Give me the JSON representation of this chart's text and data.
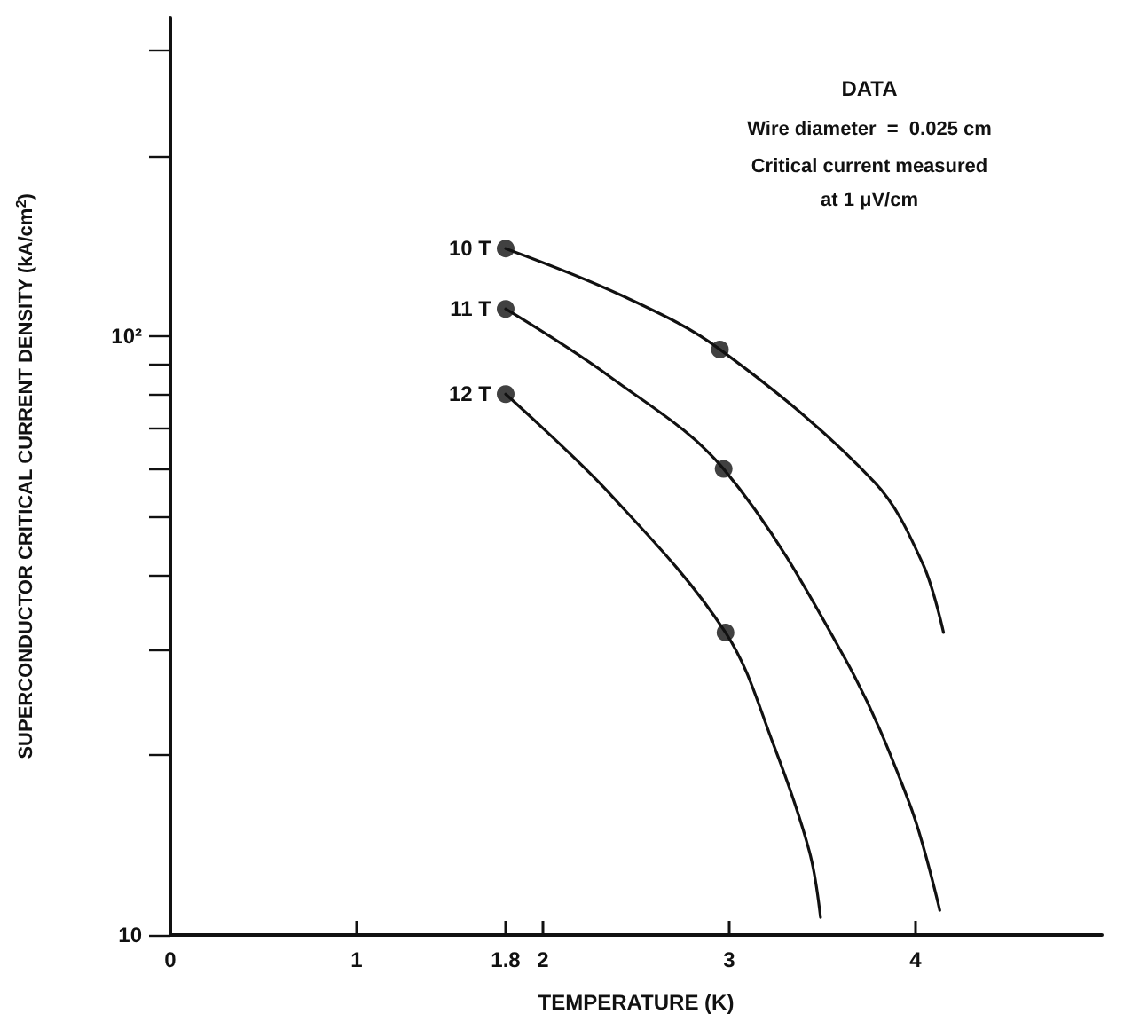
{
  "chart_data": {
    "type": "line",
    "xlabel": "TEMPERATURE (K)",
    "ylabel": "SUPERCONDUCTOR CRITICAL CURRENT DENSITY (kA/cm$^{2}$)",
    "annotations": [
      "DATA",
      "Wire diameter  =  0.025 cm",
      "Critical current measured",
      "at 1 μV/cm"
    ],
    "log": "y",
    "xlim": [
      0,
      5
    ],
    "xticks": [
      0,
      1,
      {
        "value": 1.8,
        "label": "1.8"
      },
      2,
      3,
      4
    ],
    "ylim": [
      10,
      340
    ],
    "yticks": [
      10,
      {
        "value": 20,
        "label": null
      },
      {
        "value": 30,
        "label": null
      },
      {
        "value": 40,
        "label": null
      },
      {
        "value": 50,
        "label": null
      },
      {
        "value": 60,
        "label": null
      },
      {
        "value": 70,
        "label": null
      },
      {
        "value": 80,
        "label": null
      },
      {
        "value": 90,
        "label": null
      },
      {
        "value": 100,
        "label": "10²"
      },
      {
        "value": 200,
        "label": null
      },
      {
        "value": 300,
        "label": null
      }
    ],
    "grid": false,
    "legend": false,
    "marker": "none",
    "line_style": "solid",
    "series": [
      {
        "name": "10 T",
        "color": "#111111",
        "x": [
          1.8,
          2.42,
          2.95,
          3.78,
          4.04,
          4.15
        ],
        "values": [
          140,
          117,
          95,
          57,
          41.6,
          32
        ]
      },
      {
        "name": "11 T",
        "color": "#111111",
        "x": [
          1.8,
          2.36,
          2.97,
          3.62,
          3.97,
          4.13
        ],
        "values": [
          111,
          85.5,
          60,
          29,
          16.5,
          11
        ]
      },
      {
        "name": "12 T",
        "color": "#111111",
        "x": [
          1.8,
          2.36,
          2.98,
          3.24,
          3.43,
          3.49
        ],
        "values": [
          80,
          54.5,
          32,
          20.7,
          13.8,
          10.7
        ]
      },
      {
        "type": "scatter",
        "marker": "circle",
        "color": "#111111",
        "x": [
          1.8,
          1.8,
          1.8,
          2.95,
          2.97,
          2.98
        ],
        "values": [
          140,
          111,
          80,
          95,
          60,
          32
        ]
      }
    ]
  }
}
